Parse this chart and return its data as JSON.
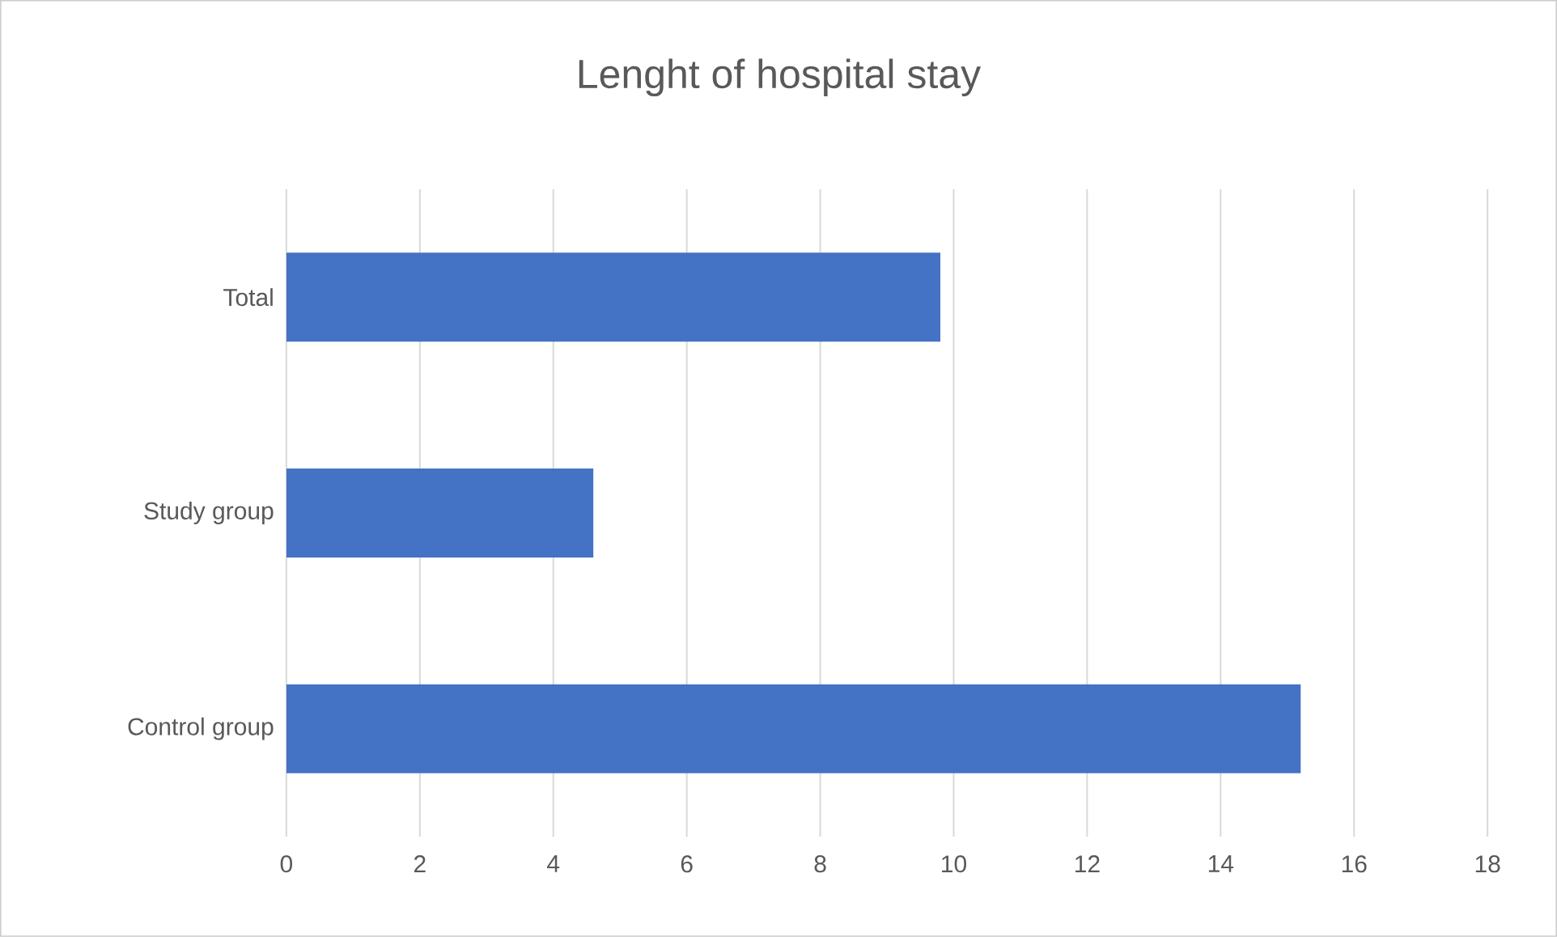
{
  "chart_data": {
    "type": "bar",
    "orientation": "horizontal",
    "title": "Lenght of hospital stay",
    "categories": [
      "Total",
      "Study group",
      "Control group"
    ],
    "values": [
      9.8,
      4.6,
      15.2
    ],
    "color": "#4472c4",
    "xlim": [
      0,
      18
    ],
    "xticks": [
      0,
      2,
      4,
      6,
      8,
      10,
      12,
      14,
      16,
      18
    ],
    "grid": "x"
  }
}
